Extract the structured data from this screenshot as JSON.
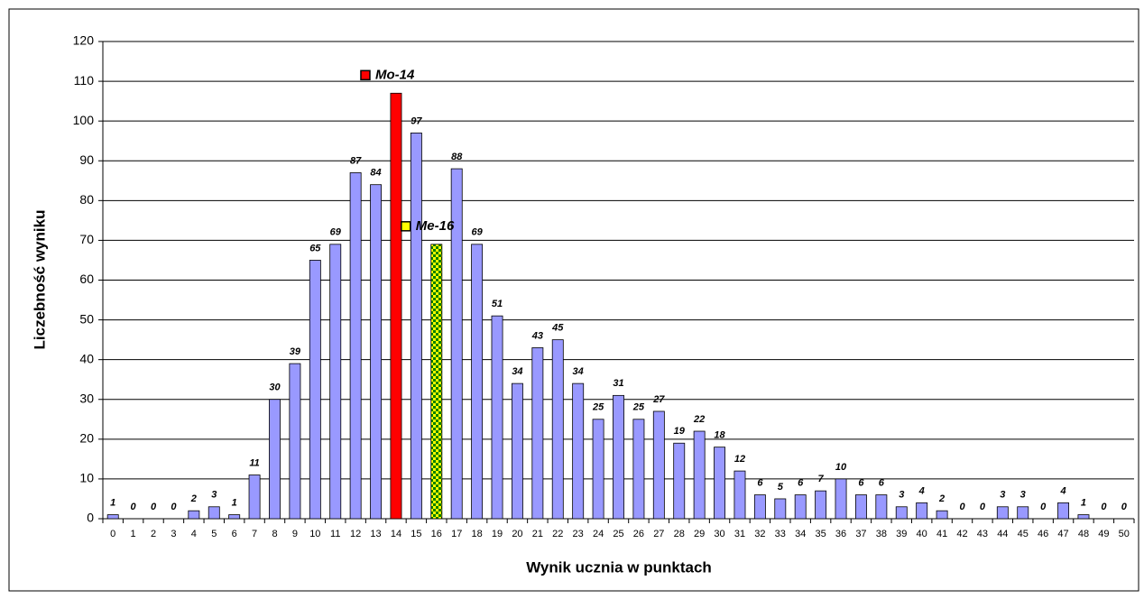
{
  "chart_data": {
    "type": "bar",
    "x_label": "Wynik ucznia w punktach",
    "y_label": "Liczebność wyniku",
    "categories": [
      "0",
      "1",
      "2",
      "3",
      "4",
      "5",
      "6",
      "7",
      "8",
      "9",
      "10",
      "11",
      "12",
      "13",
      "14",
      "15",
      "16",
      "17",
      "18",
      "19",
      "20",
      "21",
      "22",
      "23",
      "24",
      "25",
      "26",
      "27",
      "28",
      "29",
      "30",
      "31",
      "32",
      "33",
      "34",
      "35",
      "36",
      "37",
      "38",
      "39",
      "40",
      "41",
      "42",
      "43",
      "44",
      "45",
      "46",
      "47",
      "48",
      "49",
      "50"
    ],
    "values": [
      1,
      0,
      0,
      0,
      2,
      3,
      1,
      11,
      30,
      39,
      65,
      69,
      87,
      84,
      107,
      97,
      69,
      88,
      69,
      51,
      34,
      43,
      45,
      34,
      25,
      31,
      25,
      27,
      19,
      22,
      18,
      12,
      6,
      5,
      6,
      7,
      10,
      6,
      6,
      3,
      4,
      2,
      0,
      0,
      3,
      3,
      0,
      4,
      1,
      0,
      0
    ],
    "value_labels": [
      "1",
      "0",
      "0",
      "0",
      "2",
      "3",
      "1",
      "11",
      "30",
      "39",
      "65",
      "69",
      "87",
      "84",
      null,
      "97",
      null,
      "88",
      "69",
      "51",
      "34",
      "43",
      "45",
      "34",
      "25",
      "31",
      "25",
      "27",
      "19",
      "22",
      "18",
      "12",
      "6",
      "5",
      "6",
      "7",
      "10",
      "6",
      "6",
      "3",
      "4",
      "2",
      "0",
      "0",
      "3",
      "3",
      "0",
      "4",
      "1",
      "0",
      "0"
    ],
    "color": "#9999ff",
    "annotations": [
      {
        "text": "Mo-14",
        "category": "14",
        "color": "#ff0000"
      },
      {
        "text": "Me-16",
        "category": "16",
        "color": "#008000",
        "color2": "#ffff00"
      }
    ],
    "ylim": [
      0,
      120
    ],
    "yticks": [
      0,
      10,
      20,
      30,
      40,
      50,
      60,
      70,
      80,
      90,
      100,
      110,
      120
    ],
    "grid": true
  }
}
